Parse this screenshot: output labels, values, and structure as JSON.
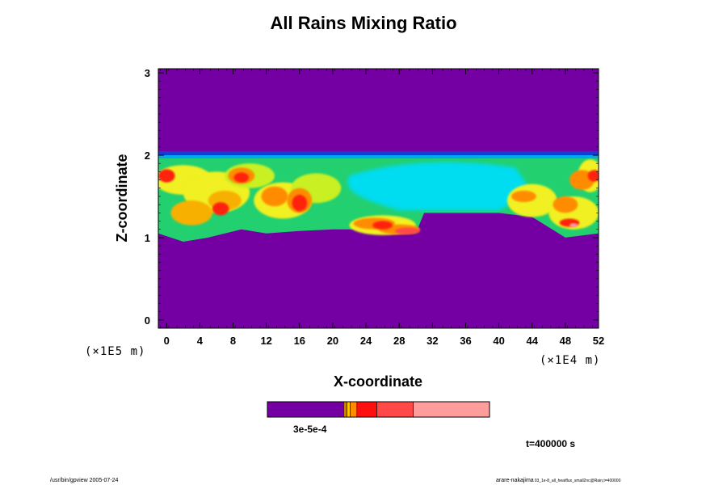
{
  "chart_data": {
    "type": "heatmap",
    "title": "All Rains Mixing Ratio",
    "xlabel": "X-coordinate",
    "ylabel": "Z-coordinate",
    "x_scale_label": "(×1E4 m)",
    "y_scale_label": "(×1E5 m)",
    "xlim": [
      -1,
      52
    ],
    "ylim": [
      -0.1,
      3.05
    ],
    "x_ticks": [
      "0",
      "4",
      "8",
      "12",
      "16",
      "20",
      "24",
      "28",
      "32",
      "36",
      "40",
      "44",
      "48",
      "52"
    ],
    "y_ticks": [
      "0",
      "1",
      "2",
      "3"
    ],
    "background_color": "#7400a4",
    "colorbar": {
      "label_overlap": "3e-5e-4",
      "colors": [
        "#7400a4",
        "#c08000",
        "#ffc800",
        "#ff8c00",
        "#ff1010",
        "#ff4848",
        "#ff9c9c"
      ]
    },
    "annotation_time": "t=400000 s"
  },
  "footer": {
    "left": "/usr/bin/gpview 2005-07-24",
    "right_main": "arare-nakajima",
    "right_sub": "03_1e-8_all_heatflux_small2nc@Rain,t=400000"
  }
}
